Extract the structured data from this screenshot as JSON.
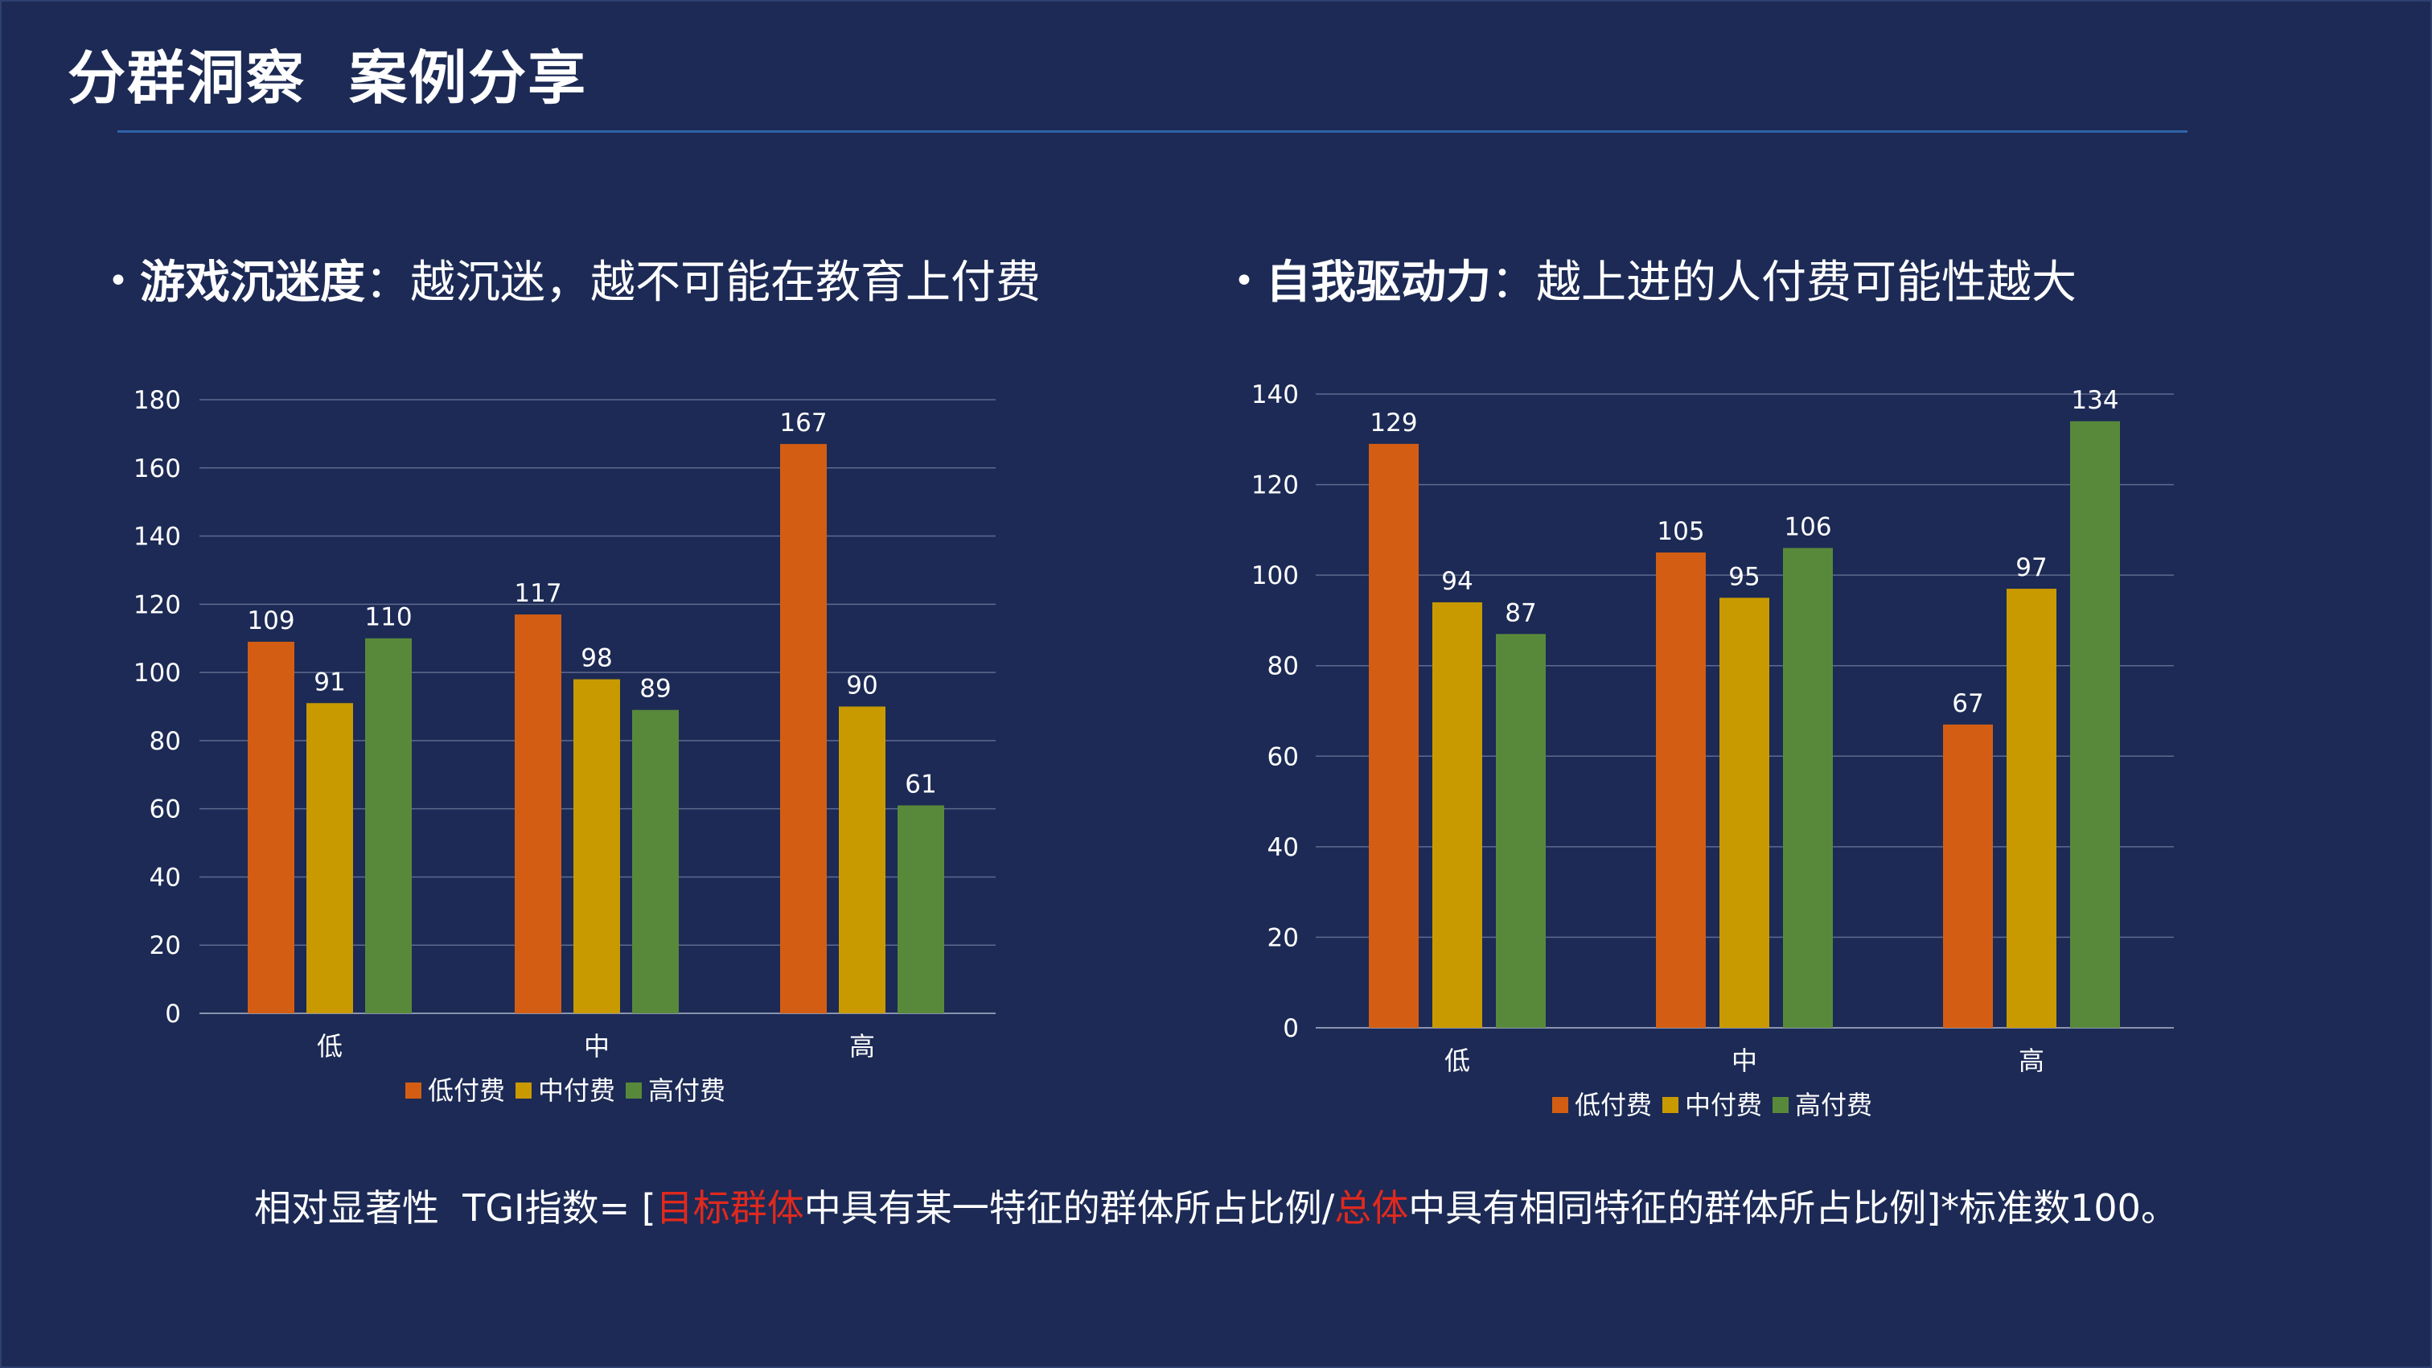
{
  "title": "分群洞察  案例分享",
  "left_heading": {
    "bold": "游戏沉迷度",
    "rest": "：越沉迷，越不可能在教育上付费"
  },
  "right_heading": {
    "bold": "自我驱动力",
    "rest": "：越上进的人付费可能性越大"
  },
  "footnote": {
    "part1": "相对显著性  TGI指数= [",
    "red1": "目标群体",
    "part2": "中具有某一特征的群体所占比例/",
    "red2": "总体",
    "part3": "中具有相同特征的群体所占比例]*标准数100。"
  },
  "colors": {
    "background": "#1c2a55",
    "low": "#d35e13",
    "mid": "#c89a00",
    "high": "#58893b",
    "accent_red": "#e0291d"
  },
  "chart_data": [
    {
      "type": "bar",
      "categories": [
        "低",
        "中",
        "高"
      ],
      "series": [
        {
          "name": "低付费",
          "values": [
            109,
            117,
            167
          ]
        },
        {
          "name": "中付费",
          "values": [
            91,
            98,
            90
          ]
        },
        {
          "name": "高付费",
          "values": [
            110,
            89,
            61
          ]
        }
      ],
      "ylim": [
        0,
        180
      ],
      "yticks": [
        0,
        20,
        40,
        60,
        80,
        100,
        120,
        140,
        160,
        180
      ],
      "grid": true,
      "legend": "bottom"
    },
    {
      "type": "bar",
      "categories": [
        "低",
        "中",
        "高"
      ],
      "series": [
        {
          "name": "低付费",
          "values": [
            129,
            105,
            67
          ]
        },
        {
          "name": "中付费",
          "values": [
            94,
            95,
            97
          ]
        },
        {
          "name": "高付费",
          "values": [
            87,
            106,
            134
          ]
        }
      ],
      "ylim": [
        0,
        140
      ],
      "yticks": [
        0,
        20,
        40,
        60,
        80,
        100,
        120,
        140
      ],
      "grid": true,
      "legend": "bottom"
    }
  ]
}
